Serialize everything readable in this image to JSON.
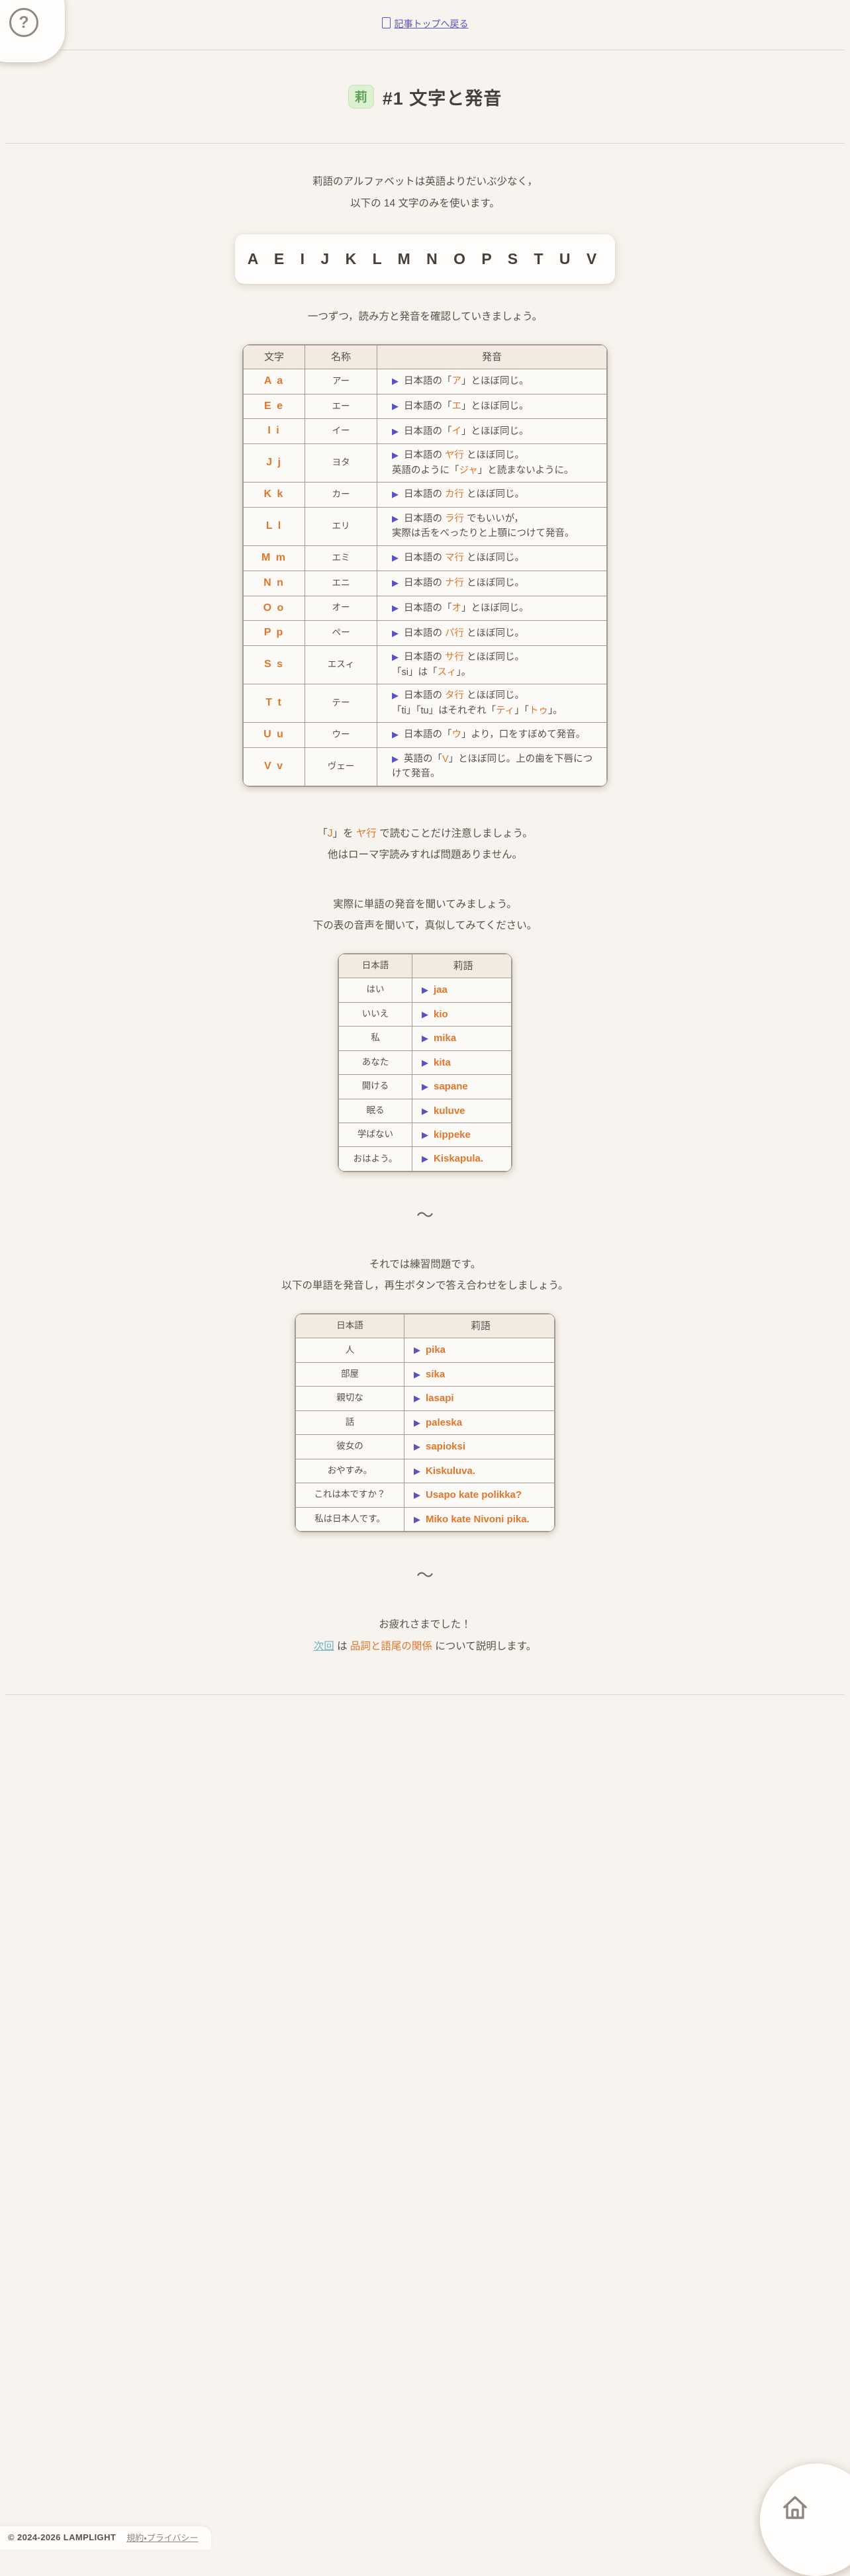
{
  "colors": {
    "accent_orange": "#e0762d",
    "play_indigo": "#5b51c6",
    "back_link": "#5653c2",
    "next_link": "#6cb0c6",
    "badge_green": "#5aa05a"
  },
  "header": {
    "back_link_label": "記事トップへ戻る",
    "help_icon": "?"
  },
  "title": {
    "badge": "莉",
    "text": "#1 文字と発音"
  },
  "intro": {
    "line1": "莉語のアルファベットは英語よりだいぶ少なく，",
    "line2": "以下の 14 文字のみを使います。"
  },
  "letters": "A E I J K L M N O P S T U V",
  "practice_note": "一つずつ，読み方と発音を確認していきましょう。",
  "alphabet_table": {
    "headers": [
      "文字",
      "名称",
      "発音"
    ],
    "rows": [
      {
        "letter": "A a",
        "name": "アー",
        "lines": [
          [
            {
              "t": "日本語の「"
            },
            {
              "t": "ア",
              "o": 1
            },
            {
              "t": "」とほぼ同じ。"
            }
          ]
        ]
      },
      {
        "letter": "E e",
        "name": "エー",
        "lines": [
          [
            {
              "t": "日本語の「"
            },
            {
              "t": "エ",
              "o": 1
            },
            {
              "t": "」とほぼ同じ。"
            }
          ]
        ]
      },
      {
        "letter": "I i",
        "name": "イー",
        "lines": [
          [
            {
              "t": "日本語の「"
            },
            {
              "t": "イ",
              "o": 1
            },
            {
              "t": "」とほぼ同じ。"
            }
          ]
        ]
      },
      {
        "letter": "J j",
        "name": "ヨタ",
        "lines": [
          [
            {
              "t": "日本語の "
            },
            {
              "t": "ヤ行",
              "o": 1
            },
            {
              "t": " とほぼ同じ。"
            }
          ],
          [
            {
              "t": "英語のように「"
            },
            {
              "t": "ジャ",
              "o": 1
            },
            {
              "t": "」と読まないように。"
            }
          ]
        ]
      },
      {
        "letter": "K k",
        "name": "カー",
        "lines": [
          [
            {
              "t": "日本語の "
            },
            {
              "t": "カ行",
              "o": 1
            },
            {
              "t": " とほぼ同じ。"
            }
          ]
        ]
      },
      {
        "letter": "L l",
        "name": "エリ",
        "lines": [
          [
            {
              "t": "日本語の "
            },
            {
              "t": "ラ行",
              "o": 1
            },
            {
              "t": " でもいいが，"
            }
          ],
          [
            {
              "t": "実際は舌をべったりと上顎につけて発音。"
            }
          ]
        ]
      },
      {
        "letter": "M m",
        "name": "エミ",
        "lines": [
          [
            {
              "t": "日本語の "
            },
            {
              "t": "マ行",
              "o": 1
            },
            {
              "t": " とほぼ同じ。"
            }
          ]
        ]
      },
      {
        "letter": "N n",
        "name": "エニ",
        "lines": [
          [
            {
              "t": "日本語の "
            },
            {
              "t": "ナ行",
              "o": 1
            },
            {
              "t": " とほぼ同じ。"
            }
          ]
        ]
      },
      {
        "letter": "O o",
        "name": "オー",
        "lines": [
          [
            {
              "t": "日本語の「"
            },
            {
              "t": "オ",
              "o": 1
            },
            {
              "t": "」とほぼ同じ。"
            }
          ]
        ]
      },
      {
        "letter": "P p",
        "name": "ペー",
        "lines": [
          [
            {
              "t": "日本語の "
            },
            {
              "t": "パ行",
              "o": 1
            },
            {
              "t": " とほぼ同じ。"
            }
          ]
        ]
      },
      {
        "letter": "S s",
        "name": "エスィ",
        "lines": [
          [
            {
              "t": "日本語の "
            },
            {
              "t": "サ行",
              "o": 1
            },
            {
              "t": " とほぼ同じ。"
            }
          ],
          [
            {
              "t": "「si」は「"
            },
            {
              "t": "スィ",
              "o": 1
            },
            {
              "t": "」。"
            }
          ]
        ]
      },
      {
        "letter": "T t",
        "name": "テー",
        "lines": [
          [
            {
              "t": "日本語の "
            },
            {
              "t": "タ行",
              "o": 1
            },
            {
              "t": " とほぼ同じ。"
            }
          ],
          [
            {
              "t": "「ti」「tu」はそれぞれ「"
            },
            {
              "t": "ティ",
              "o": 1
            },
            {
              "t": "」「"
            },
            {
              "t": "トゥ",
              "o": 1
            },
            {
              "t": "」。"
            }
          ]
        ]
      },
      {
        "letter": "U u",
        "name": "ウー",
        "lines": [
          [
            {
              "t": "日本語の「"
            },
            {
              "t": "ウ",
              "o": 1
            },
            {
              "t": "」より，口をすぼめて発音。"
            }
          ]
        ]
      },
      {
        "letter": "V v",
        "name": "ヴェー",
        "lines": [
          [
            {
              "t": "英語の「"
            },
            {
              "t": "V",
              "o": 1
            },
            {
              "t": "」とほぼ同じ。上の歯を下唇につけて発音。"
            }
          ]
        ]
      }
    ]
  },
  "note_j": {
    "line1": [
      {
        "t": "「"
      },
      {
        "t": "J",
        "o": 1
      },
      {
        "t": "」を "
      },
      {
        "t": "ヤ行",
        "o": 1
      },
      {
        "t": " で読むことだけ注意しましょう。"
      }
    ],
    "line2": "他はローマ字読みすれば問題ありません。"
  },
  "listen": {
    "line1": "実際に単語の発音を聞いてみましょう。",
    "line2": "下の表の音声を聞いて，真似してみてください。"
  },
  "word_table_headers": [
    "日本語",
    "莉語"
  ],
  "words1": [
    {
      "jp": "はい",
      "ri": "jaa"
    },
    {
      "jp": "いいえ",
      "ri": "kio"
    },
    {
      "jp": "私",
      "ri": "mika"
    },
    {
      "jp": "あなた",
      "ri": "kita"
    },
    {
      "jp": "開ける",
      "ri": "sapane"
    },
    {
      "jp": "眠る",
      "ri": "kuluve"
    },
    {
      "jp": "学ばない",
      "ri": "kippeke"
    },
    {
      "jp": "おはよう。",
      "ri": "Kiskapula."
    }
  ],
  "practice": {
    "line1": "それでは練習問題です。",
    "line2": "以下の単語を発音し，再生ボタンで答え合わせをしましょう。"
  },
  "words2": [
    {
      "jp": "人",
      "ri": "pika"
    },
    {
      "jp": "部屋",
      "ri": "sika"
    },
    {
      "jp": "親切な",
      "ri": "lasapi"
    },
    {
      "jp": "話",
      "ri": "paleska"
    },
    {
      "jp": "彼女の",
      "ri": "sapioksi"
    },
    {
      "jp": "おやすみ。",
      "ri": "Kiskuluva."
    },
    {
      "jp": "これは本ですか？",
      "ri": "Usapo kate polikka?"
    },
    {
      "jp": "私は日本人です。",
      "ri": "Miko kate Nivoni pika."
    }
  ],
  "divider": "〜",
  "outro": {
    "line1": "お疲れさまでした！",
    "line2": [
      {
        "t": "次回",
        "link": 1
      },
      {
        "t": " は "
      },
      {
        "t": "品詞と語尾の関係",
        "o": 1
      },
      {
        "t": " について説明します。"
      }
    ]
  },
  "play_glyph": "▶",
  "footer": {
    "copyright": "© 2024-2026 LAMPLIGHT",
    "terms": "規約・プライバシー"
  }
}
